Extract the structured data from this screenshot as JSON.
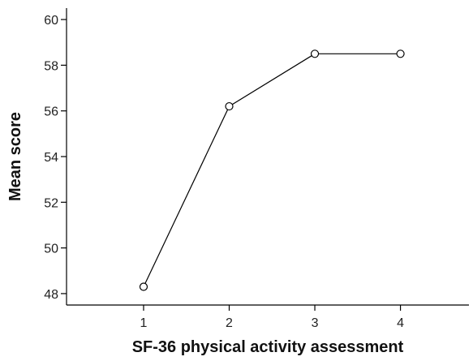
{
  "chart_data": {
    "type": "line",
    "title": "",
    "xlabel": "SF-36 physical activity assessment",
    "ylabel": "Mean score",
    "x": [
      1,
      2,
      3,
      4
    ],
    "xticks": [
      "1",
      "2",
      "3",
      "4"
    ],
    "xlim": [
      0.1,
      4.8
    ],
    "ylim": [
      47.5,
      60.5
    ],
    "yticks": [
      48,
      50,
      52,
      54,
      56,
      58,
      60
    ],
    "series": [
      {
        "values": [
          48.3,
          56.2,
          58.5,
          58.5
        ]
      }
    ],
    "marker": "open-circle",
    "grid": false,
    "legend": "none"
  }
}
